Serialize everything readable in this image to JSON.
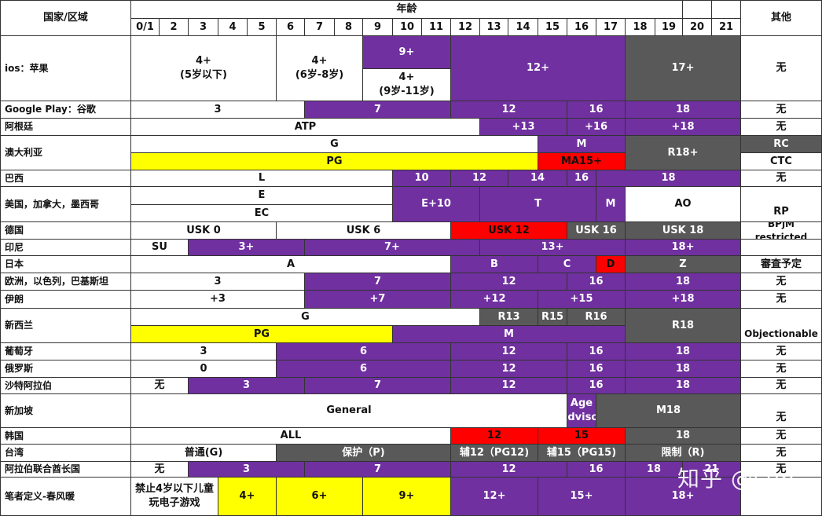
{
  "header": {
    "region_label": "国家/区域",
    "age_label": "年龄",
    "other_label": "其他",
    "ages": [
      "0/1",
      "2",
      "3",
      "4",
      "5",
      "6",
      "7",
      "8",
      "9",
      "10",
      "11",
      "12",
      "13",
      "14",
      "15",
      "16",
      "17",
      "18",
      "19",
      "20",
      "21"
    ]
  },
  "rows": [
    {
      "region": "ios：苹果",
      "other": "无",
      "bands": [
        [
          "4+\n(5岁以下)"
        ],
        [
          "4+\n(6岁-8岁)"
        ],
        [
          "9+",
          "4+\n(9岁-11岁)"
        ],
        [
          "12+"
        ],
        [
          "17+"
        ]
      ]
    },
    {
      "region": "Google Play：谷歌",
      "other": "无",
      "bands": [
        "3",
        "7",
        "12",
        "16",
        "18"
      ]
    },
    {
      "region": "阿根廷",
      "other": "无",
      "bands": [
        "ATP",
        "+13",
        "+16",
        "+18"
      ]
    },
    {
      "region": "澳大利亚",
      "other_top": "RC",
      "other_bottom": "CTC",
      "bands": [
        "G",
        "M",
        "R18+",
        "PG",
        "MA15+"
      ]
    },
    {
      "region": "巴西",
      "other": "无",
      "bands": [
        "L",
        "10",
        "12",
        "14",
        "16",
        "18"
      ]
    },
    {
      "region": "美国，加拿大，墨西哥",
      "other": "RP",
      "bands": [
        "E",
        "EC",
        "E+10",
        "T",
        "M",
        "AO"
      ]
    },
    {
      "region": "德国",
      "other": "BPjM restricted",
      "bands": [
        "USK 0",
        "USK 6",
        "USK 12",
        "USK 16",
        "USK 18"
      ]
    },
    {
      "region": "印尼",
      "other": "",
      "bands": [
        "SU",
        "3+",
        "7+",
        "13+",
        "18+"
      ]
    },
    {
      "region": "日本",
      "other": "審査予定",
      "bands": [
        "A",
        "B",
        "C",
        "D",
        "Z"
      ]
    },
    {
      "region": "欧洲，以色列，巴基斯坦",
      "other": "无",
      "bands": [
        "3",
        "7",
        "12",
        "16",
        "18"
      ]
    },
    {
      "region": "伊朗",
      "other": "无",
      "bands": [
        "+3",
        "+7",
        "+12",
        "+15",
        "+18"
      ]
    },
    {
      "region": "新西兰",
      "other": "Objectionable",
      "bands": [
        "G",
        "R13",
        "R15",
        "R16",
        "R18",
        "PG",
        "M"
      ]
    },
    {
      "region": "葡萄牙",
      "other": "无",
      "bands": [
        "3",
        "6",
        "12",
        "16",
        "18"
      ]
    },
    {
      "region": "俄罗斯",
      "other": "无",
      "bands": [
        "0",
        "6",
        "12",
        "16",
        "18"
      ]
    },
    {
      "region": "沙特阿拉伯",
      "other": "无",
      "bands": [
        "无",
        "3",
        "7",
        "12",
        "16",
        "18"
      ]
    },
    {
      "region": "新加坡",
      "other": "无",
      "bands": [
        "General",
        "Age\nAdvisor",
        "M18"
      ]
    },
    {
      "region": "韩国",
      "other": "无",
      "bands": [
        "ALL",
        "12",
        "15",
        "18"
      ]
    },
    {
      "region": "台湾",
      "other": "无",
      "bands": [
        "普通(G)",
        "保护（P)",
        "辅12（PG12)",
        "辅15（PG15)",
        "限制（R)"
      ]
    },
    {
      "region": "阿拉伯联合酋长国",
      "other": "无",
      "bands": [
        "无",
        "3",
        "7",
        "12",
        "16",
        "18",
        "21"
      ]
    },
    {
      "region": "笔者定义-春风暖",
      "other": "",
      "bands": [
        "禁止4岁以下儿童\n玩电子游戏",
        "4+",
        "6+",
        "9+",
        "12+",
        "15+",
        "18+"
      ]
    }
  ],
  "watermark": "知乎 @sun",
  "colors": {
    "purple": "#7030a0",
    "gray": "#595959",
    "yellow": "#ffff00",
    "red": "#ff0000",
    "white": "#ffffff",
    "grid": "#333333"
  }
}
